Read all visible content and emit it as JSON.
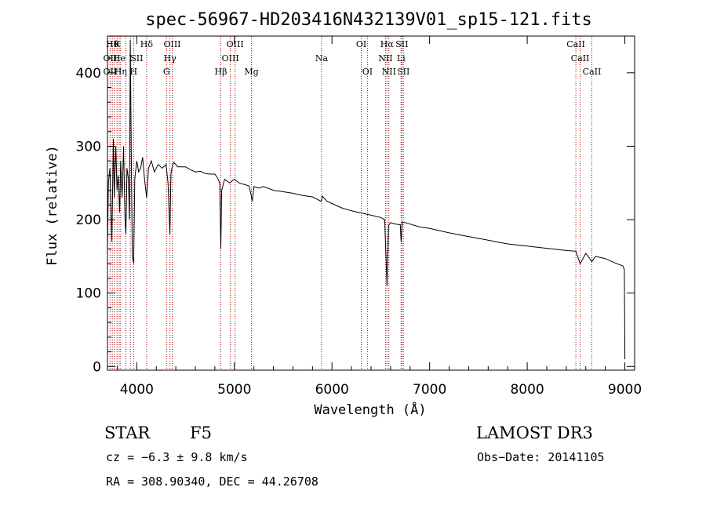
{
  "chart_data": {
    "type": "line",
    "title": "spec-56967-HD203416N432139V01_sp15-121.fits",
    "xlabel": "Wavelength (Å)",
    "ylabel": "Flux (relative)",
    "xlim": [
      3700,
      9100
    ],
    "ylim": [
      -5,
      450
    ],
    "x_ticks": [
      4000,
      5000,
      6000,
      7000,
      8000,
      9000
    ],
    "x_tick_labels": [
      "4000",
      "5000",
      "6000",
      "7000",
      "8000",
      "9000"
    ],
    "y_ticks": [
      0,
      100,
      200,
      300,
      400
    ],
    "y_tick_labels": [
      "0",
      "100",
      "200",
      "300",
      "400"
    ],
    "grid": false,
    "series": [
      {
        "name": "flux",
        "color": "#000000",
        "x": [
          3700,
          3710,
          3725,
          3745,
          3760,
          3770,
          3785,
          3798,
          3810,
          3825,
          3835,
          3850,
          3865,
          3880,
          3889,
          3900,
          3915,
          3925,
          3934,
          3945,
          3955,
          3968,
          3980,
          4000,
          4020,
          4040,
          4060,
          4080,
          4101,
          4120,
          4150,
          4180,
          4220,
          4260,
          4300,
          4320,
          4340,
          4350,
          4360,
          4380,
          4420,
          4460,
          4500,
          4550,
          4600,
          4650,
          4700,
          4750,
          4800,
          4830,
          4850,
          4861,
          4870,
          4900,
          4950,
          5000,
          5050,
          5100,
          5150,
          5170,
          5183,
          5200,
          5250,
          5300,
          5400,
          5500,
          5600,
          5700,
          5800,
          5889,
          5900,
          5950,
          6000,
          6100,
          6200,
          6300,
          6400,
          6500,
          6540,
          6563,
          6580,
          6600,
          6650,
          6700,
          6708,
          6720,
          6800,
          6900,
          7000,
          7200,
          7400,
          7600,
          7800,
          8000,
          8200,
          8400,
          8498,
          8542,
          8600,
          8662,
          8700,
          8800,
          8900,
          8980,
          8995,
          9000
        ],
        "y": [
          160,
          250,
          270,
          170,
          310,
          230,
          300,
          240,
          260,
          210,
          280,
          230,
          300,
          200,
          180,
          270,
          255,
          200,
          445,
          270,
          150,
          140,
          255,
          280,
          265,
          270,
          285,
          255,
          230,
          270,
          280,
          265,
          275,
          270,
          275,
          250,
          180,
          262,
          270,
          278,
          272,
          272,
          272,
          268,
          265,
          266,
          263,
          262,
          262,
          256,
          250,
          160,
          240,
          255,
          250,
          255,
          250,
          248,
          246,
          235,
          225,
          245,
          243,
          245,
          240,
          238,
          236,
          233,
          231,
          225,
          232,
          225,
          222,
          216,
          212,
          209,
          206,
          203,
          200,
          110,
          192,
          196,
          194,
          193,
          170,
          197,
          194,
          190,
          188,
          182,
          177,
          172,
          167,
          164,
          161,
          158,
          157,
          140,
          154,
          143,
          150,
          147,
          141,
          137,
          132,
          10
        ]
      }
    ],
    "line_markers": [
      {
        "row": 0,
        "x": 3750,
        "label": "Hθ"
      },
      {
        "row": 0,
        "x": 3798,
        "label": "K"
      },
      {
        "row": 0,
        "x": 4101,
        "label": "Hδ"
      },
      {
        "row": 0,
        "x": 4363,
        "label": "OIII"
      },
      {
        "row": 0,
        "x": 5007,
        "label": "OIII"
      },
      {
        "row": 0,
        "x": 6300,
        "label": "OI"
      },
      {
        "row": 0,
        "x": 6563,
        "label": "Hα"
      },
      {
        "row": 0,
        "x": 6716,
        "label": "SII"
      },
      {
        "row": 0,
        "x": 8498,
        "label": "CaII"
      },
      {
        "row": 1,
        "x": 3727,
        "label": "OII"
      },
      {
        "row": 1,
        "x": 3820,
        "label": "He"
      },
      {
        "row": 1,
        "x": 3934,
        "label": "I"
      },
      {
        "row": 1,
        "x": 4000,
        "label": "SII"
      },
      {
        "row": 1,
        "x": 4340,
        "label": "Hγ"
      },
      {
        "row": 1,
        "x": 4959,
        "label": "OIII"
      },
      {
        "row": 1,
        "x": 5893,
        "label": "Na"
      },
      {
        "row": 1,
        "x": 6548,
        "label": "NII"
      },
      {
        "row": 1,
        "x": 6708,
        "label": "Li"
      },
      {
        "row": 1,
        "x": 8542,
        "label": "CaII"
      },
      {
        "row": 2,
        "x": 3727,
        "label": "OII"
      },
      {
        "row": 2,
        "x": 3835,
        "label": "Hη"
      },
      {
        "row": 2,
        "x": 3968,
        "label": "H"
      },
      {
        "row": 2,
        "x": 4305,
        "label": "G"
      },
      {
        "row": 2,
        "x": 4861,
        "label": "Hβ"
      },
      {
        "row": 2,
        "x": 5175,
        "label": "Mg"
      },
      {
        "row": 2,
        "x": 6363,
        "label": "OI"
      },
      {
        "row": 2,
        "x": 6583,
        "label": "NII"
      },
      {
        "row": 2,
        "x": 6731,
        "label": "SII"
      },
      {
        "row": 2,
        "x": 8662,
        "label": "CaII"
      }
    ],
    "marker_lines_x": [
      3727,
      3750,
      3771,
      3798,
      3820,
      3835,
      3889,
      3934,
      3968,
      4101,
      4305,
      4340,
      4363,
      4861,
      4959,
      5007,
      5175,
      5893,
      6300,
      6363,
      6548,
      6563,
      6583,
      6708,
      6716,
      6731,
      8498,
      8542,
      8662
    ],
    "marker_color": "#b00000"
  },
  "info": {
    "object_class": "STAR",
    "subclass": "F5",
    "survey": "LAMOST DR3",
    "redshift_text": "cz = −6.3 ± 9.8 km/s",
    "obs_date": "Obs−Date: 20141105",
    "coords": "RA = 308.90340, DEC =  44.26708"
  }
}
